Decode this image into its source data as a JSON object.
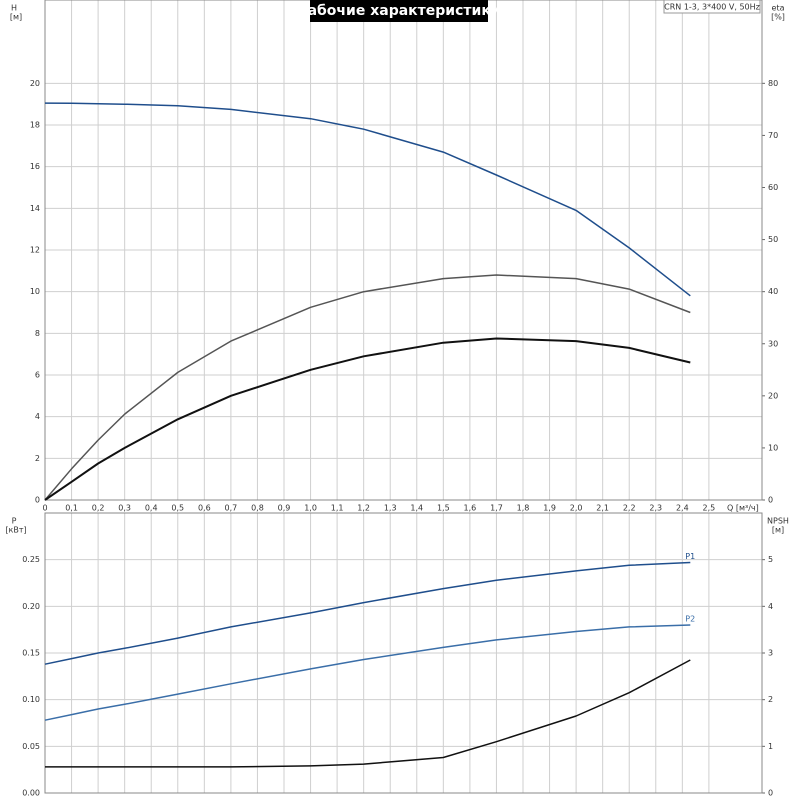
{
  "chart_data": [
    {
      "type": "line",
      "title": "Рабочие характеристики",
      "annotation": "CRN 1-3, 3*400 V, 50Hz",
      "ylabel": "H",
      "yunit": "[м]",
      "y2label": "eta",
      "y2unit": "[%]",
      "xlabel": "Q [м³/ч]",
      "x": [
        0,
        0.1,
        0.2,
        0.3,
        0.5,
        0.7,
        1.0,
        1.2,
        1.5,
        1.7,
        2.0,
        2.2,
        2.43
      ],
      "xlim": [
        0,
        2.7
      ],
      "xticks": [
        0,
        {
          "value": 0.1,
          "label": "0,1"
        },
        {
          "value": 0.2,
          "label": "0,2"
        },
        {
          "value": 0.3,
          "label": "0,3"
        },
        {
          "value": 0.4,
          "label": "0,4"
        },
        {
          "value": 0.5,
          "label": "0,5"
        },
        {
          "value": 0.6,
          "label": "0,6"
        },
        {
          "value": 0.7,
          "label": "0,7"
        },
        {
          "value": 0.8,
          "label": "0,8"
        },
        {
          "value": 0.9,
          "label": "0,9"
        },
        {
          "value": 1.0,
          "label": "1,0"
        },
        {
          "value": 1.1,
          "label": "1,1"
        },
        {
          "value": 1.2,
          "label": "1,2"
        },
        {
          "value": 1.3,
          "label": "1,3"
        },
        {
          "value": 1.4,
          "label": "1,4"
        },
        {
          "value": 1.5,
          "label": "1,5"
        },
        {
          "value": 1.6,
          "label": "1,6"
        },
        {
          "value": 1.7,
          "label": "1,7"
        },
        {
          "value": 1.8,
          "label": "1,8"
        },
        {
          "value": 1.9,
          "label": "1,9"
        },
        {
          "value": 2.0,
          "label": "2,0"
        },
        {
          "value": 2.1,
          "label": "2,1"
        },
        {
          "value": 2.2,
          "label": "2,2"
        },
        {
          "value": 2.3,
          "label": "2,3"
        },
        {
          "value": 2.4,
          "label": "2,4"
        },
        {
          "value": 2.5,
          "label": "2,5"
        }
      ],
      "ylim": [
        0,
        24
      ],
      "yticks": [
        0,
        2,
        4,
        6,
        8,
        10,
        12,
        14,
        16,
        18,
        20
      ],
      "y2lim": [
        0,
        96
      ],
      "y2ticks": [
        0,
        10,
        20,
        30,
        40,
        50,
        60,
        70,
        80
      ],
      "grid": true,
      "series": [
        {
          "color": "#1f4e8c",
          "values": [
            19.05,
            19.04,
            19.02,
            19.0,
            18.92,
            18.75,
            18.3,
            17.8,
            16.7,
            15.6,
            13.9,
            12.1,
            9.8
          ]
        },
        {
          "color": "#555555",
          "axis": "y2",
          "values": [
            0,
            6,
            11.5,
            16.5,
            24.5,
            30.5,
            37,
            40,
            42.5,
            43.2,
            42.5,
            40.5,
            36
          ]
        },
        {
          "color": "#111111",
          "axis": "y2",
          "values": [
            0,
            3.5,
            7,
            10,
            15.5,
            20,
            25,
            27.6,
            30.2,
            31,
            30.5,
            29.2,
            26.4
          ]
        }
      ]
    },
    {
      "type": "line",
      "ylabel": "P",
      "yunit": "[кВт]",
      "y2label": "NPSH",
      "y2unit": "[м]",
      "x": [
        0,
        0.1,
        0.2,
        0.3,
        0.5,
        0.7,
        1.0,
        1.2,
        1.5,
        1.7,
        2.0,
        2.2,
        2.43
      ],
      "xlim": [
        0,
        2.7
      ],
      "ylim": [
        0,
        0.3
      ],
      "yticks": [
        {
          "value": 0,
          "label": "0.00"
        },
        0.05,
        {
          "value": 0.1,
          "label": "0.10"
        },
        0.15,
        {
          "value": 0.2,
          "label": "0.20"
        },
        0.25
      ],
      "y2lim": [
        0,
        6
      ],
      "y2ticks": [
        0,
        1,
        2,
        3,
        4,
        5
      ],
      "grid": true,
      "series": [
        {
          "name": "P1",
          "color": "#1f4e8c",
          "values": [
            0.138,
            0.144,
            0.15,
            0.155,
            0.166,
            0.178,
            0.193,
            0.204,
            0.219,
            0.228,
            0.238,
            0.244,
            0.247
          ]
        },
        {
          "name": "P2",
          "color": "#3a6ea8",
          "values": [
            0.078,
            0.084,
            0.09,
            0.095,
            0.106,
            0.117,
            0.133,
            0.143,
            0.156,
            0.164,
            0.173,
            0.178,
            0.18
          ]
        },
        {
          "color": "#111111",
          "axis": "y2",
          "values": [
            0.56,
            0.56,
            0.56,
            0.56,
            0.56,
            0.56,
            0.58,
            0.62,
            0.76,
            1.1,
            1.65,
            2.15,
            2.85
          ]
        }
      ]
    }
  ]
}
